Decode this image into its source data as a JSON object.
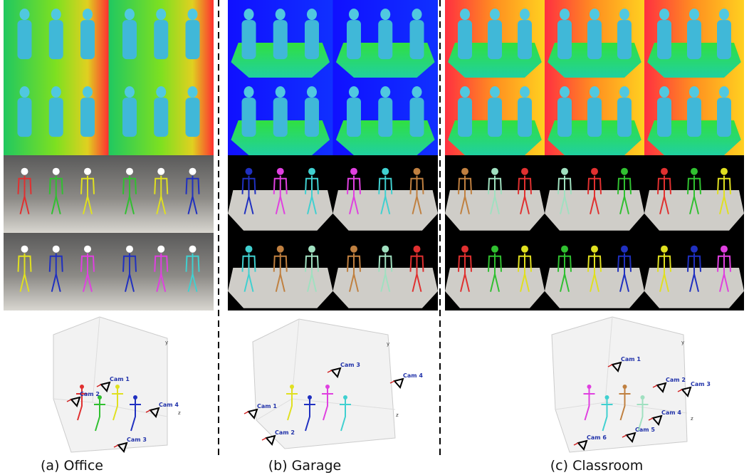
{
  "panels": [
    {
      "caption": "(a) Office",
      "cameras": [
        "Cam 1",
        "Cam 2",
        "Cam 4",
        "Cam 3"
      ],
      "axes": [
        "y",
        "z"
      ]
    },
    {
      "caption": "(b) Garage",
      "cameras": [
        "Cam 3",
        "Cam 4",
        "Cam 1",
        "Cam 2"
      ],
      "axes": [
        "y",
        "z"
      ]
    },
    {
      "caption": "(c) Classroom",
      "cameras": [
        "Cam 1",
        "Cam 2",
        "Cam 3",
        "Cam 4",
        "Cam 5",
        "Cam 6"
      ],
      "axes": [
        "y",
        "z"
      ]
    }
  ]
}
